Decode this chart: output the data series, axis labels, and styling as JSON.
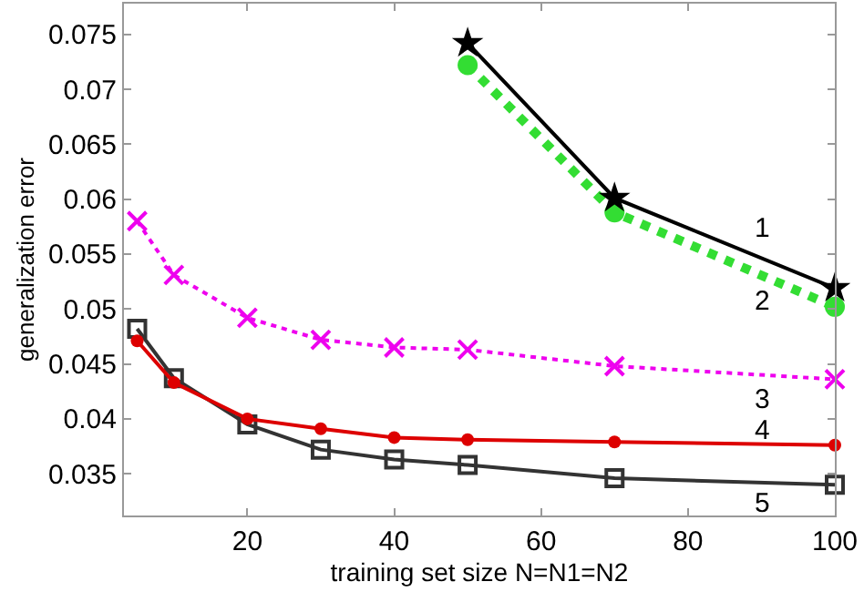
{
  "chart_data": {
    "type": "line",
    "xlabel": "training set size N=N1=N2",
    "ylabel": "generalization error",
    "xlim": [
      3.2,
      100
    ],
    "ylim": [
      0.0312,
      0.0778
    ],
    "xticks": [
      20,
      40,
      60,
      80,
      100
    ],
    "yticks": [
      0.035,
      0.04,
      0.045,
      0.05,
      0.055,
      0.06,
      0.065,
      0.07,
      0.075
    ],
    "legend": false,
    "series": [
      {
        "name": "1",
        "x": [
          50,
          70,
          100
        ],
        "values": [
          0.0742,
          0.0601,
          0.0519
        ],
        "color": "#000000",
        "marker": "star",
        "line_style": "solid"
      },
      {
        "name": "2",
        "x": [
          50,
          70,
          100
        ],
        "values": [
          0.0722,
          0.0588,
          0.0502
        ],
        "color": "#33dd33",
        "marker": "circle",
        "line_style": "dotted"
      },
      {
        "name": "3",
        "x": [
          5,
          10,
          20,
          30,
          40,
          50,
          70,
          100
        ],
        "values": [
          0.058,
          0.0531,
          0.0492,
          0.0472,
          0.0465,
          0.0463,
          0.0448,
          0.0436
        ],
        "color": "#ee00ee",
        "marker": "cross",
        "line_style": "dotted"
      },
      {
        "name": "4",
        "x": [
          5,
          10,
          20,
          30,
          40,
          50,
          70,
          100
        ],
        "values": [
          0.0471,
          0.0433,
          0.04,
          0.0391,
          0.0383,
          0.0381,
          0.0379,
          0.0376
        ],
        "color": "#dd0000",
        "marker": "circle",
        "line_style": "solid"
      },
      {
        "name": "5",
        "x": [
          5,
          10,
          20,
          30,
          40,
          50,
          70,
          100
        ],
        "values": [
          0.0482,
          0.0437,
          0.0395,
          0.0372,
          0.0363,
          0.0358,
          0.0346,
          0.034
        ],
        "color": "#333333",
        "marker": "square",
        "line_style": "solid"
      }
    ]
  }
}
